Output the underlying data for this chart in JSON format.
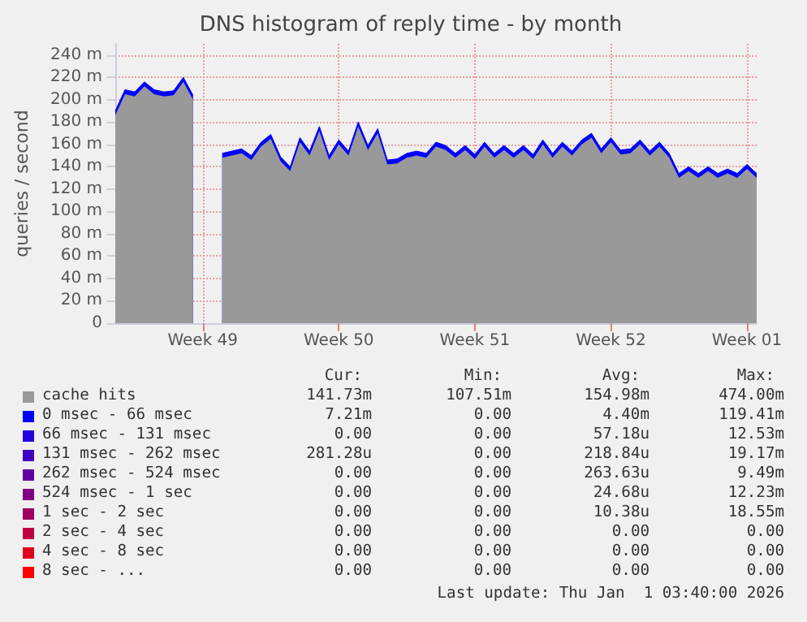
{
  "chart_data": {
    "type": "area",
    "title": "DNS histogram of reply time - by month",
    "ylabel": "queries / second",
    "stacked": true,
    "grid": true,
    "legend": "bottom",
    "marker": "none",
    "categories": [
      null,
      null,
      null,
      null,
      null,
      null,
      null,
      null,
      null,
      "Week 49",
      null,
      null,
      null,
      null,
      null,
      null,
      null,
      null,
      null,
      null,
      null,
      null,
      null,
      "Week 50",
      null,
      null,
      null,
      null,
      null,
      null,
      null,
      null,
      null,
      null,
      null,
      null,
      null,
      "Week 51",
      null,
      null,
      null,
      null,
      null,
      null,
      null,
      null,
      null,
      null,
      null,
      null,
      null,
      "Week 52",
      null,
      null,
      null,
      null,
      null,
      null,
      null,
      null,
      null,
      null,
      null,
      null,
      null,
      "Week 01",
      null
    ],
    "series": [
      {
        "name": "cache hits",
        "color": "#999999",
        "values": [
          186,
          205,
          203,
          212,
          205,
          203,
          204,
          216,
          200,
          null,
          null,
          148,
          150,
          152,
          146,
          158,
          165,
          145,
          136,
          162,
          150,
          172,
          146,
          160,
          150,
          176,
          155,
          170,
          142,
          143,
          148,
          150,
          148,
          158,
          155,
          148,
          155,
          147,
          158,
          148,
          155,
          148,
          155,
          147,
          160,
          148,
          158,
          150,
          160,
          166,
          152,
          162,
          151,
          152,
          160,
          150,
          158,
          148,
          130,
          136,
          130,
          136,
          130,
          134,
          130,
          138,
          130
        ]
      },
      {
        "name": "0 msec - 66 msec",
        "color": "#0000ff",
        "values": [
          4,
          4,
          4,
          4,
          4,
          4,
          4,
          4,
          4,
          null,
          null,
          4,
          4,
          4,
          4,
          4,
          4,
          4,
          4,
          4,
          4,
          4,
          4,
          4,
          4,
          4,
          4,
          4,
          4,
          4,
          4,
          4,
          4,
          4,
          4,
          4,
          4,
          4,
          4,
          4,
          4,
          4,
          4,
          4,
          4,
          4,
          4,
          4,
          4,
          4,
          4,
          4,
          4,
          4,
          4,
          4,
          4,
          4,
          4,
          4,
          4,
          4,
          4,
          4,
          4,
          4,
          4
        ]
      },
      {
        "name": "66 msec - 131 msec",
        "color": "#2000df",
        "values": [
          null,
          null,
          null,
          null,
          null,
          null,
          null,
          null,
          null,
          null,
          null,
          null,
          null,
          null,
          null,
          null,
          null,
          null,
          null,
          null,
          null,
          null,
          null,
          null,
          null,
          null,
          null,
          null,
          null,
          null,
          null,
          null,
          null,
          null,
          null,
          null,
          null,
          null,
          null,
          null,
          null,
          null,
          null,
          null,
          null,
          null,
          null,
          null,
          null,
          null,
          null,
          null,
          null,
          null,
          null,
          null,
          null,
          null,
          null,
          null,
          null,
          null,
          null,
          null,
          null,
          null,
          null
        ]
      },
      {
        "name": "131 msec - 262 msec",
        "color": "#4000bf",
        "values": [
          null,
          null,
          null,
          null,
          null,
          null,
          null,
          null,
          null,
          null,
          null,
          null,
          null,
          null,
          null,
          null,
          null,
          null,
          null,
          null,
          null,
          null,
          null,
          null,
          null,
          null,
          null,
          null,
          null,
          null,
          null,
          null,
          null,
          null,
          null,
          null,
          null,
          null,
          null,
          null,
          null,
          null,
          null,
          null,
          null,
          null,
          null,
          null,
          null,
          null,
          null,
          null,
          null,
          null,
          null,
          null,
          null,
          null,
          null,
          null,
          null,
          null,
          null,
          null,
          null,
          null,
          null
        ]
      },
      {
        "name": "262 msec - 524 msec",
        "color": "#60009f",
        "values": [
          null,
          null,
          null,
          null,
          null,
          null,
          null,
          null,
          null,
          null,
          null,
          null,
          null,
          null,
          null,
          null,
          null,
          null,
          null,
          null,
          null,
          null,
          null,
          null,
          null,
          null,
          null,
          null,
          null,
          null,
          null,
          null,
          null,
          null,
          null,
          null,
          null,
          null,
          null,
          null,
          null,
          null,
          null,
          null,
          null,
          null,
          null,
          null,
          null,
          null,
          null,
          null,
          null,
          null,
          null,
          null,
          null,
          null,
          null,
          null,
          null,
          null,
          null,
          null,
          null,
          null,
          null
        ]
      },
      {
        "name": "524 msec - 1 sec",
        "color": "#80007f",
        "values": [
          null,
          null,
          null,
          null,
          null,
          null,
          null,
          null,
          null,
          null,
          null,
          null,
          null,
          null,
          null,
          null,
          null,
          null,
          null,
          null,
          null,
          null,
          null,
          null,
          null,
          null,
          null,
          null,
          null,
          null,
          null,
          null,
          null,
          null,
          null,
          null,
          null,
          null,
          null,
          null,
          null,
          null,
          null,
          null,
          null,
          null,
          null,
          null,
          null,
          null,
          null,
          null,
          null,
          null,
          null,
          null,
          null,
          null,
          null,
          null,
          null,
          null,
          null,
          null,
          null,
          null,
          null
        ]
      },
      {
        "name": "1 sec - 2 sec",
        "color": "#9f0060",
        "values": [
          null,
          null,
          null,
          null,
          null,
          null,
          null,
          null,
          null,
          null,
          null,
          null,
          null,
          null,
          null,
          null,
          null,
          null,
          null,
          null,
          null,
          null,
          null,
          null,
          null,
          null,
          null,
          null,
          null,
          null,
          null,
          null,
          null,
          null,
          null,
          null,
          null,
          null,
          null,
          null,
          null,
          null,
          null,
          null,
          null,
          null,
          null,
          null,
          null,
          null,
          null,
          null,
          null,
          null,
          null,
          null,
          null,
          null,
          null,
          null,
          null,
          null,
          null,
          null,
          null,
          null,
          null
        ]
      },
      {
        "name": "2 sec - 4 sec",
        "color": "#bf0040",
        "values": [
          null,
          null,
          null,
          null,
          null,
          null,
          null,
          null,
          null,
          null,
          null,
          null,
          null,
          null,
          null,
          null,
          null,
          null,
          null,
          null,
          null,
          null,
          null,
          null,
          null,
          null,
          null,
          null,
          null,
          null,
          null,
          null,
          null,
          null,
          null,
          null,
          null,
          null,
          null,
          null,
          null,
          null,
          null,
          null,
          null,
          null,
          null,
          null,
          null,
          null,
          null,
          null,
          null,
          null,
          null,
          null,
          null,
          null,
          null,
          null,
          null,
          null,
          null,
          null,
          null,
          null,
          null
        ]
      },
      {
        "name": "4 sec - 8 sec",
        "color": "#df0020",
        "values": [
          null,
          null,
          null,
          null,
          null,
          null,
          null,
          null,
          null,
          null,
          null,
          null,
          null,
          null,
          null,
          null,
          null,
          null,
          null,
          null,
          null,
          null,
          null,
          null,
          null,
          null,
          null,
          null,
          null,
          null,
          null,
          null,
          null,
          null,
          null,
          null,
          null,
          null,
          null,
          null,
          null,
          null,
          null,
          null,
          null,
          null,
          null,
          null,
          null,
          null,
          null,
          null,
          null,
          null,
          null,
          null,
          null,
          null,
          null,
          null,
          null,
          null,
          null,
          null,
          null,
          null,
          null
        ]
      },
      {
        "name": "8 sec - ...",
        "color": "#ff0000",
        "values": [
          null,
          null,
          null,
          null,
          null,
          null,
          null,
          null,
          null,
          null,
          null,
          null,
          null,
          null,
          null,
          null,
          null,
          null,
          null,
          null,
          null,
          null,
          null,
          null,
          null,
          null,
          null,
          null,
          null,
          null,
          null,
          null,
          null,
          null,
          null,
          null,
          null,
          null,
          null,
          null,
          null,
          null,
          null,
          null,
          null,
          null,
          null,
          null,
          null,
          null,
          null,
          null,
          null,
          null,
          null,
          null,
          null,
          null,
          null,
          null,
          null,
          null,
          null,
          null,
          null,
          null,
          null
        ]
      }
    ],
    "ylim": [
      0,
      250
    ],
    "yticks": [
      0,
      {
        "value": 20,
        "label": "20 m"
      },
      {
        "value": 40,
        "label": "40 m"
      },
      {
        "value": 60,
        "label": "60 m"
      },
      {
        "value": 80,
        "label": "80 m"
      },
      {
        "value": 100,
        "label": "100 m"
      },
      {
        "value": 120,
        "label": "120 m"
      },
      {
        "value": 140,
        "label": "140 m"
      },
      {
        "value": 160,
        "label": "160 m"
      },
      {
        "value": 180,
        "label": "180 m"
      },
      {
        "value": 200,
        "label": "200 m"
      },
      {
        "value": 220,
        "label": "220 m"
      },
      {
        "value": 240,
        "label": "240 m"
      }
    ],
    "annotations": [
      "Cur:",
      "Min:",
      "Avg:",
      "Max:",
      "141.73m",
      "107.51m",
      "154.98m",
      "474.00m",
      "7.21m",
      "0.00",
      "4.40m",
      "119.41m",
      "0.00",
      "0.00",
      "57.18u",
      "12.53m",
      "281.28u",
      "0.00",
      "218.84u",
      "19.17m",
      "0.00",
      "0.00",
      "263.63u",
      "9.49m",
      "0.00",
      "0.00",
      "24.68u",
      "12.23m",
      "0.00",
      "0.00",
      "10.38u",
      "18.55m",
      "0.00",
      "0.00",
      "0.00",
      "0.00",
      "0.00",
      "0.00",
      "0.00",
      "0.00",
      "0.00",
      "0.00",
      "0.00",
      "0.00",
      "Last update: Thu Jan  1 03:40:00 2026"
    ]
  }
}
